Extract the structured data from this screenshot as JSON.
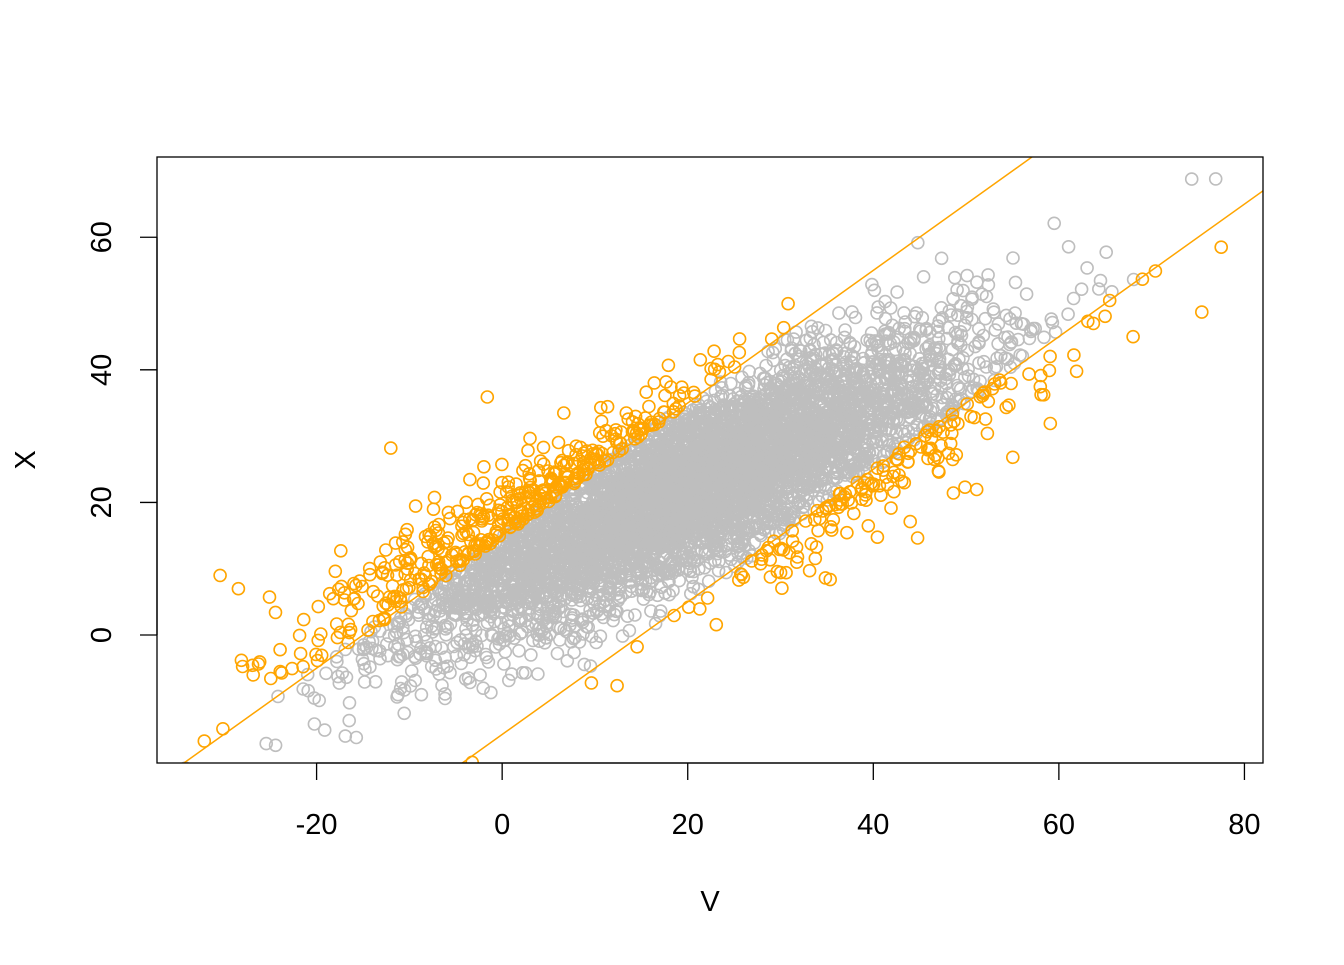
{
  "chart_data": {
    "type": "scatter",
    "title": "",
    "xlabel": "V",
    "ylabel": "X",
    "xlim": [
      -37.2,
      82.0
    ],
    "ylim": [
      -19.3,
      72.1
    ],
    "xticks": [
      -20,
      0,
      20,
      40,
      60,
      80
    ],
    "yticks": [
      0,
      20,
      40,
      60
    ],
    "xtick_labels": [
      "-20",
      "0",
      "20",
      "40",
      "60",
      "80"
    ],
    "ytick_labels": [
      "0",
      "20",
      "40",
      "60"
    ],
    "grid": false,
    "legend": "none",
    "marker": "open-circle",
    "colors": {
      "inside_band": "#bebebe",
      "outside_band": "#ffa500",
      "lines": "#ffa500",
      "frame": "#000000"
    },
    "reference_lines": [
      {
        "slope": 1,
        "intercept": 15
      },
      {
        "slope": 1,
        "intercept": -15
      }
    ],
    "highlight_rule": "points with |X - V| > 15 drawn orange, others gray",
    "notable_points": [
      {
        "V": 76.9,
        "X": 68.8,
        "color": "gray"
      },
      {
        "V": 59.5,
        "X": 62.1,
        "color": "gray"
      },
      {
        "V": 77.5,
        "X": 58.5,
        "color": "orange"
      },
      {
        "V": 75.4,
        "X": 48.7,
        "color": "orange"
      },
      {
        "V": 70.4,
        "X": 54.9,
        "color": "orange"
      },
      {
        "V": 68.0,
        "X": 45.0,
        "color": "orange"
      },
      {
        "V": 30.6,
        "X": 9.4,
        "color": "orange"
      },
      {
        "V": -32.1,
        "X": -16.0,
        "color": "orange"
      },
      {
        "V": -30.4,
        "X": 9.0,
        "color": "orange"
      },
      {
        "V": -20.9,
        "X": -8.4,
        "color": "gray"
      },
      {
        "V": -8.7,
        "X": -9.0,
        "color": "gray"
      },
      {
        "V": -1.6,
        "X": 35.9,
        "color": "orange"
      },
      {
        "V": -12.0,
        "X": 28.2,
        "color": "orange"
      }
    ]
  }
}
